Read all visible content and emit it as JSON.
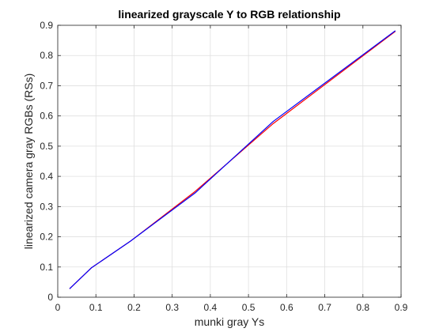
{
  "chart_data": {
    "type": "line",
    "title": "linearized grayscale Y to RGB relationship",
    "xlabel": "munki gray Ys",
    "ylabel": "linearized camera gray RGBs (RSs)",
    "xlim": [
      0,
      0.9
    ],
    "ylim": [
      0,
      0.9
    ],
    "xticks": [
      "0",
      "0.1",
      "0.2",
      "0.3",
      "0.4",
      "0.5",
      "0.6",
      "0.7",
      "0.8",
      "0.9"
    ],
    "yticks": [
      "0",
      "0.1",
      "0.2",
      "0.3",
      "0.4",
      "0.5",
      "0.6",
      "0.7",
      "0.8",
      "0.9"
    ],
    "grid": true,
    "legend": "none",
    "series": [
      {
        "color": "#ff0000",
        "x": [
          0.031,
          0.088,
          0.19,
          0.36,
          0.565,
          0.885
        ],
        "y": [
          0.028,
          0.097,
          0.185,
          0.35,
          0.575,
          0.88
        ]
      },
      {
        "color": "#0000ff",
        "x": [
          0.031,
          0.088,
          0.19,
          0.36,
          0.565,
          0.885
        ],
        "y": [
          0.028,
          0.097,
          0.185,
          0.345,
          0.582,
          0.882
        ]
      }
    ]
  }
}
